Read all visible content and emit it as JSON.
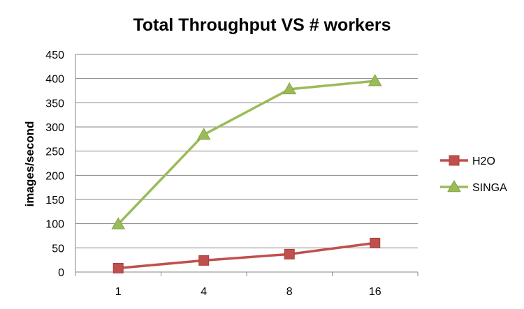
{
  "chart_data": {
    "type": "line",
    "title": "Total Throughput VS # workers",
    "xlabel": "",
    "ylabel": "images/second",
    "categories": [
      "1",
      "4",
      "8",
      "16"
    ],
    "yticks": [
      0,
      50,
      100,
      150,
      200,
      250,
      300,
      350,
      400,
      450
    ],
    "ylim": [
      0,
      450
    ],
    "grid": true,
    "legend_position": "right",
    "series": [
      {
        "name": "H2O",
        "values": [
          8,
          24,
          37,
          60
        ],
        "color": "#c0504d",
        "marker": "square"
      },
      {
        "name": "SINGA",
        "values": [
          99,
          284,
          378,
          395
        ],
        "color": "#9bbb59",
        "marker": "triangle"
      }
    ]
  }
}
